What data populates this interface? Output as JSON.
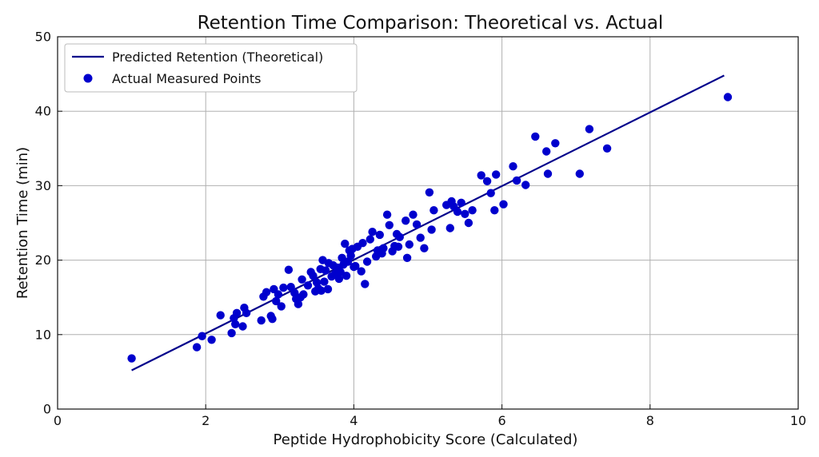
{
  "chart_data": {
    "type": "scatter",
    "title": "Retention Time Comparison: Theoretical vs. Actual",
    "xlabel": "Peptide Hydrophobicity Score (Calculated)",
    "ylabel": "Retention Time (min)",
    "xlim": [
      0,
      10
    ],
    "ylim": [
      0,
      50
    ],
    "xticks": [
      0,
      2,
      4,
      6,
      8,
      10
    ],
    "yticks": [
      0,
      10,
      20,
      30,
      40,
      50
    ],
    "grid": true,
    "legend_position": "top-left",
    "series": [
      {
        "name": "Predicted Retention (Theoretical)",
        "kind": "line",
        "color": "#00008B",
        "x": [
          1.0,
          9.0
        ],
        "y": [
          5.2,
          44.8
        ]
      },
      {
        "name": "Actual Measured Points",
        "kind": "scatter",
        "color": "#0000CD",
        "points": [
          [
            1.0,
            6.8
          ],
          [
            1.88,
            8.3
          ],
          [
            1.95,
            9.8
          ],
          [
            2.08,
            9.3
          ],
          [
            2.2,
            12.6
          ],
          [
            2.35,
            10.2
          ],
          [
            2.38,
            12.2
          ],
          [
            2.4,
            11.4
          ],
          [
            2.42,
            12.9
          ],
          [
            2.5,
            11.1
          ],
          [
            2.52,
            13.6
          ],
          [
            2.55,
            12.9
          ],
          [
            2.75,
            11.9
          ],
          [
            2.78,
            15.1
          ],
          [
            2.82,
            15.7
          ],
          [
            2.88,
            12.5
          ],
          [
            2.9,
            12.1
          ],
          [
            2.92,
            16.1
          ],
          [
            2.95,
            14.5
          ],
          [
            2.98,
            15.4
          ],
          [
            3.02,
            13.8
          ],
          [
            3.05,
            16.3
          ],
          [
            3.12,
            18.7
          ],
          [
            3.15,
            16.4
          ],
          [
            3.2,
            15.6
          ],
          [
            3.22,
            14.8
          ],
          [
            3.25,
            14.1
          ],
          [
            3.28,
            15.0
          ],
          [
            3.3,
            17.4
          ],
          [
            3.32,
            15.4
          ],
          [
            3.38,
            16.6
          ],
          [
            3.42,
            18.4
          ],
          [
            3.45,
            17.9
          ],
          [
            3.48,
            15.8
          ],
          [
            3.5,
            17.0
          ],
          [
            3.52,
            16.2
          ],
          [
            3.55,
            18.8
          ],
          [
            3.56,
            15.9
          ],
          [
            3.58,
            20.0
          ],
          [
            3.6,
            17.1
          ],
          [
            3.62,
            18.6
          ],
          [
            3.65,
            16.1
          ],
          [
            3.66,
            19.6
          ],
          [
            3.7,
            17.8
          ],
          [
            3.72,
            19.3
          ],
          [
            3.75,
            18.2
          ],
          [
            3.78,
            19.0
          ],
          [
            3.8,
            17.5
          ],
          [
            3.82,
            18.4
          ],
          [
            3.84,
            20.3
          ],
          [
            3.86,
            19.4
          ],
          [
            3.88,
            22.2
          ],
          [
            3.9,
            17.9
          ],
          [
            3.92,
            19.8
          ],
          [
            3.94,
            21.3
          ],
          [
            3.96,
            20.6
          ],
          [
            3.98,
            21.5
          ],
          [
            4.0,
            19.1
          ],
          [
            4.02,
            19.2
          ],
          [
            4.05,
            21.8
          ],
          [
            4.1,
            18.5
          ],
          [
            4.12,
            22.3
          ],
          [
            4.15,
            16.8
          ],
          [
            4.18,
            19.8
          ],
          [
            4.22,
            22.8
          ],
          [
            4.25,
            23.8
          ],
          [
            4.3,
            20.5
          ],
          [
            4.32,
            21.3
          ],
          [
            4.35,
            23.4
          ],
          [
            4.38,
            20.9
          ],
          [
            4.4,
            21.6
          ],
          [
            4.45,
            26.1
          ],
          [
            4.48,
            24.7
          ],
          [
            4.52,
            21.2
          ],
          [
            4.55,
            21.9
          ],
          [
            4.58,
            23.5
          ],
          [
            4.6,
            21.8
          ],
          [
            4.62,
            23.1
          ],
          [
            4.7,
            25.3
          ],
          [
            4.72,
            20.3
          ],
          [
            4.75,
            22.1
          ],
          [
            4.8,
            26.1
          ],
          [
            4.85,
            24.8
          ],
          [
            4.9,
            23.0
          ],
          [
            4.95,
            21.6
          ],
          [
            5.02,
            29.1
          ],
          [
            5.05,
            24.1
          ],
          [
            5.08,
            26.7
          ],
          [
            5.25,
            27.4
          ],
          [
            5.3,
            24.3
          ],
          [
            5.32,
            27.9
          ],
          [
            5.35,
            27.2
          ],
          [
            5.4,
            26.5
          ],
          [
            5.45,
            27.7
          ],
          [
            5.5,
            26.2
          ],
          [
            5.55,
            25.0
          ],
          [
            5.6,
            26.7
          ],
          [
            5.72,
            31.4
          ],
          [
            5.8,
            30.6
          ],
          [
            5.85,
            29.0
          ],
          [
            5.9,
            26.7
          ],
          [
            5.92,
            31.5
          ],
          [
            6.02,
            27.5
          ],
          [
            6.15,
            32.6
          ],
          [
            6.2,
            30.7
          ],
          [
            6.32,
            30.1
          ],
          [
            6.45,
            36.6
          ],
          [
            6.6,
            34.6
          ],
          [
            6.62,
            31.6
          ],
          [
            6.72,
            35.7
          ],
          [
            7.05,
            31.6
          ],
          [
            7.18,
            37.6
          ],
          [
            7.42,
            35.0
          ],
          [
            9.05,
            41.9
          ]
        ]
      }
    ]
  }
}
